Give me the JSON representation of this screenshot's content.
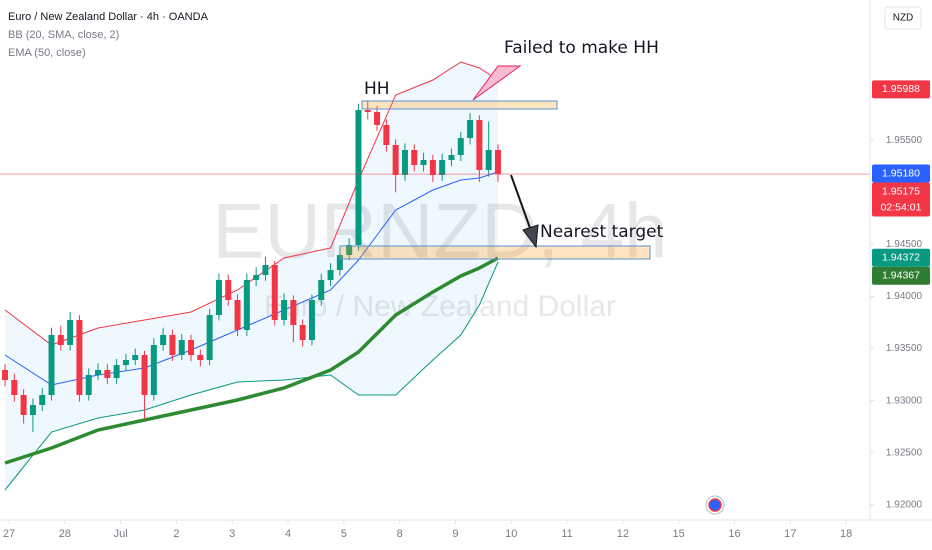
{
  "chart_data": {
    "type": "candlestick",
    "title": "Euro / New Zealand Dollar · 4h · OANDA",
    "currency": "NZD",
    "watermark": {
      "symbol": "EURNZD, 4h",
      "name": "Euro / New Zealand Dollar"
    },
    "annotations": [
      "HH",
      "Failed to make HH",
      "Nearest target"
    ],
    "up_color": "#089981",
    "down_color": "#f23645",
    "x": [
      0,
      1,
      2,
      3,
      4,
      5,
      6,
      7,
      8,
      9,
      10,
      11,
      12,
      13,
      14,
      15,
      16,
      17,
      18,
      19,
      20,
      21,
      22,
      23,
      24,
      25,
      26,
      27,
      28,
      29,
      30,
      31,
      32,
      33,
      34,
      35,
      36,
      37,
      38,
      39,
      40,
      41,
      42,
      43,
      44,
      45,
      46,
      47,
      48,
      49,
      50,
      51,
      52,
      53
    ],
    "open": [
      1.93294,
      1.93198,
      1.93054,
      1.92862,
      1.92958,
      1.93054,
      1.9363,
      1.93534,
      1.93774,
      1.93054,
      1.93246,
      1.93294,
      1.93217,
      1.93342,
      1.9339,
      1.93438,
      1.93054,
      1.93534,
      1.9363,
      1.93438,
      1.93582,
      1.93438,
      1.9339,
      1.93822,
      1.94158,
      1.93966,
      1.93678,
      1.94158,
      1.94206,
      1.94302,
      1.93774,
      1.93966,
      1.93726,
      1.93582,
      1.93966,
      1.94158,
      1.94254,
      1.94398,
      1.94494,
      1.9579,
      1.95771,
      1.95646,
      1.95454,
      1.95166,
      1.95406,
      1.95262,
      1.9531,
      1.95166,
      1.9531,
      1.95358,
      1.95521,
      1.95694,
      1.95214,
      1.95406
    ],
    "high": [
      1.9335,
      1.9326,
      1.9311,
      1.9302,
      1.9312,
      1.937,
      1.9372,
      1.9385,
      1.9382,
      1.9331,
      1.9336,
      1.9335,
      1.934,
      1.9345,
      1.935,
      1.9348,
      1.936,
      1.937,
      1.9368,
      1.9364,
      1.9363,
      1.9349,
      1.9388,
      1.9422,
      1.9421,
      1.9402,
      1.9422,
      1.9428,
      1.9438,
      1.9434,
      1.9403,
      1.9401,
      1.9378,
      1.9402,
      1.9422,
      1.9432,
      1.9446,
      1.9456,
      1.9585,
      1.9588,
      1.9583,
      1.957,
      1.9551,
      1.9547,
      1.9546,
      1.9538,
      1.9536,
      1.9537,
      1.9542,
      1.9558,
      1.9576,
      1.9574,
      1.9568,
      1.9546
    ],
    "low": [
      1.93138,
      1.9299,
      1.9278,
      1.927,
      1.929,
      1.93,
      1.9348,
      1.9348,
      1.9299,
      1.93,
      1.932,
      1.9316,
      1.9316,
      1.9329,
      1.9334,
      1.9282,
      1.93,
      1.9348,
      1.9338,
      1.9339,
      1.9338,
      1.9333,
      1.9334,
      1.9377,
      1.9391,
      1.9362,
      1.9362,
      1.941,
      1.9415,
      1.9372,
      1.9372,
      1.9356,
      1.9352,
      1.9353,
      1.9391,
      1.941,
      1.942,
      1.9435,
      1.9444,
      1.957,
      1.9559,
      1.9539,
      1.95,
      1.9511,
      1.952,
      1.952,
      1.951,
      1.9511,
      1.9525,
      1.953,
      1.9546,
      1.951,
      1.9515,
      1.951
    ],
    "close": [
      1.93198,
      1.93054,
      1.92862,
      1.92958,
      1.93054,
      1.9363,
      1.93534,
      1.93774,
      1.93054,
      1.93246,
      1.93294,
      1.93217,
      1.93342,
      1.9339,
      1.93438,
      1.93054,
      1.93534,
      1.9363,
      1.93438,
      1.93582,
      1.93438,
      1.9339,
      1.93822,
      1.94158,
      1.93966,
      1.93678,
      1.94158,
      1.94206,
      1.94302,
      1.93774,
      1.93966,
      1.93726,
      1.93582,
      1.93966,
      1.94158,
      1.94254,
      1.94398,
      1.94494,
      1.9579,
      1.95771,
      1.95646,
      1.95454,
      1.95166,
      1.95406,
      1.95262,
      1.9531,
      1.95166,
      1.9531,
      1.95358,
      1.95521,
      1.95694,
      1.95214,
      1.95406,
      1.95175
    ],
    "bands": {
      "name": "BB (20, SMA, close, 2)",
      "x": [
        0,
        5,
        10,
        15,
        20,
        25,
        30,
        35,
        38,
        42,
        46,
        49,
        51,
        53
      ],
      "upper": [
        1.9387,
        1.93534,
        1.93697,
        1.93774,
        1.93851,
        1.94062,
        1.94369,
        1.94465,
        1.95118,
        1.95934,
        1.96078,
        1.96251,
        1.96193,
        1.96078
      ],
      "middle": [
        1.93438,
        1.9315,
        1.93246,
        1.93313,
        1.93486,
        1.93678,
        1.9387,
        1.94062,
        1.9435,
        1.9483,
        1.95022,
        1.95118,
        1.95137,
        1.95195
      ],
      "lower": [
        1.92142,
        1.92699,
        1.92833,
        1.9291,
        1.93054,
        1.93179,
        1.93198,
        1.93246,
        1.93054,
        1.93054,
        1.9339,
        1.9363,
        1.93918,
        1.94331
      ],
      "upper_color": "#f23645",
      "middle_color": "#2962ff",
      "lower_color": "#089981",
      "fill": "#2196f3"
    },
    "ema": {
      "name": "EMA (50, close)",
      "color": "#2e8b32",
      "x": [
        0,
        5,
        10,
        15,
        20,
        25,
        30,
        35,
        38,
        42,
        46,
        49,
        51,
        53
      ],
      "values": [
        1.92401,
        1.92545,
        1.92718,
        1.92814,
        1.9291,
        1.93006,
        1.93121,
        1.93294,
        1.93467,
        1.93822,
        1.94043,
        1.94196,
        1.94273,
        1.94369
      ]
    },
    "price_tags": [
      {
        "value": 1.95988,
        "color": "#f23645"
      },
      {
        "value": 1.9518,
        "label": "1.95180",
        "color": "#2962ff"
      },
      {
        "value": 1.95175,
        "color": "#f23645",
        "countdown": "02:54:01"
      },
      {
        "value": 1.94372,
        "color": "#089981"
      },
      {
        "value": 1.94367,
        "color": "#2e7d32"
      }
    ],
    "xlim": [
      -0.54,
      93.0
    ],
    "ylim": [
      1.91854,
      1.96846
    ],
    "yticks": [
      {
        "value": 1.92,
        "label": "1.92000"
      },
      {
        "value": 1.925,
        "label": "1.92500"
      },
      {
        "value": 1.93,
        "label": "1.93000"
      },
      {
        "value": 1.935,
        "label": "1.93500"
      },
      {
        "value": 1.94,
        "label": "1.94000"
      },
      {
        "value": 1.945,
        "label": "1.94500"
      },
      {
        "value": 1.955,
        "label": "1.95500"
      }
    ],
    "xticks": [
      {
        "value": 0,
        "label": "27"
      },
      {
        "value": 6,
        "label": "28"
      },
      {
        "value": 12,
        "label": "Jul"
      },
      {
        "value": 18,
        "label": "2"
      },
      {
        "value": 24,
        "label": "3"
      },
      {
        "value": 30,
        "label": "4"
      },
      {
        "value": 36,
        "label": "5"
      },
      {
        "value": 42,
        "label": "8"
      },
      {
        "value": 48,
        "label": "9"
      },
      {
        "value": 54,
        "label": "10"
      },
      {
        "value": 60,
        "label": "11"
      },
      {
        "value": 66,
        "label": "12"
      },
      {
        "value": 72,
        "label": "15"
      },
      {
        "value": 78,
        "label": "16"
      },
      {
        "value": 84,
        "label": "17"
      },
      {
        "value": 90,
        "label": "18"
      }
    ]
  }
}
